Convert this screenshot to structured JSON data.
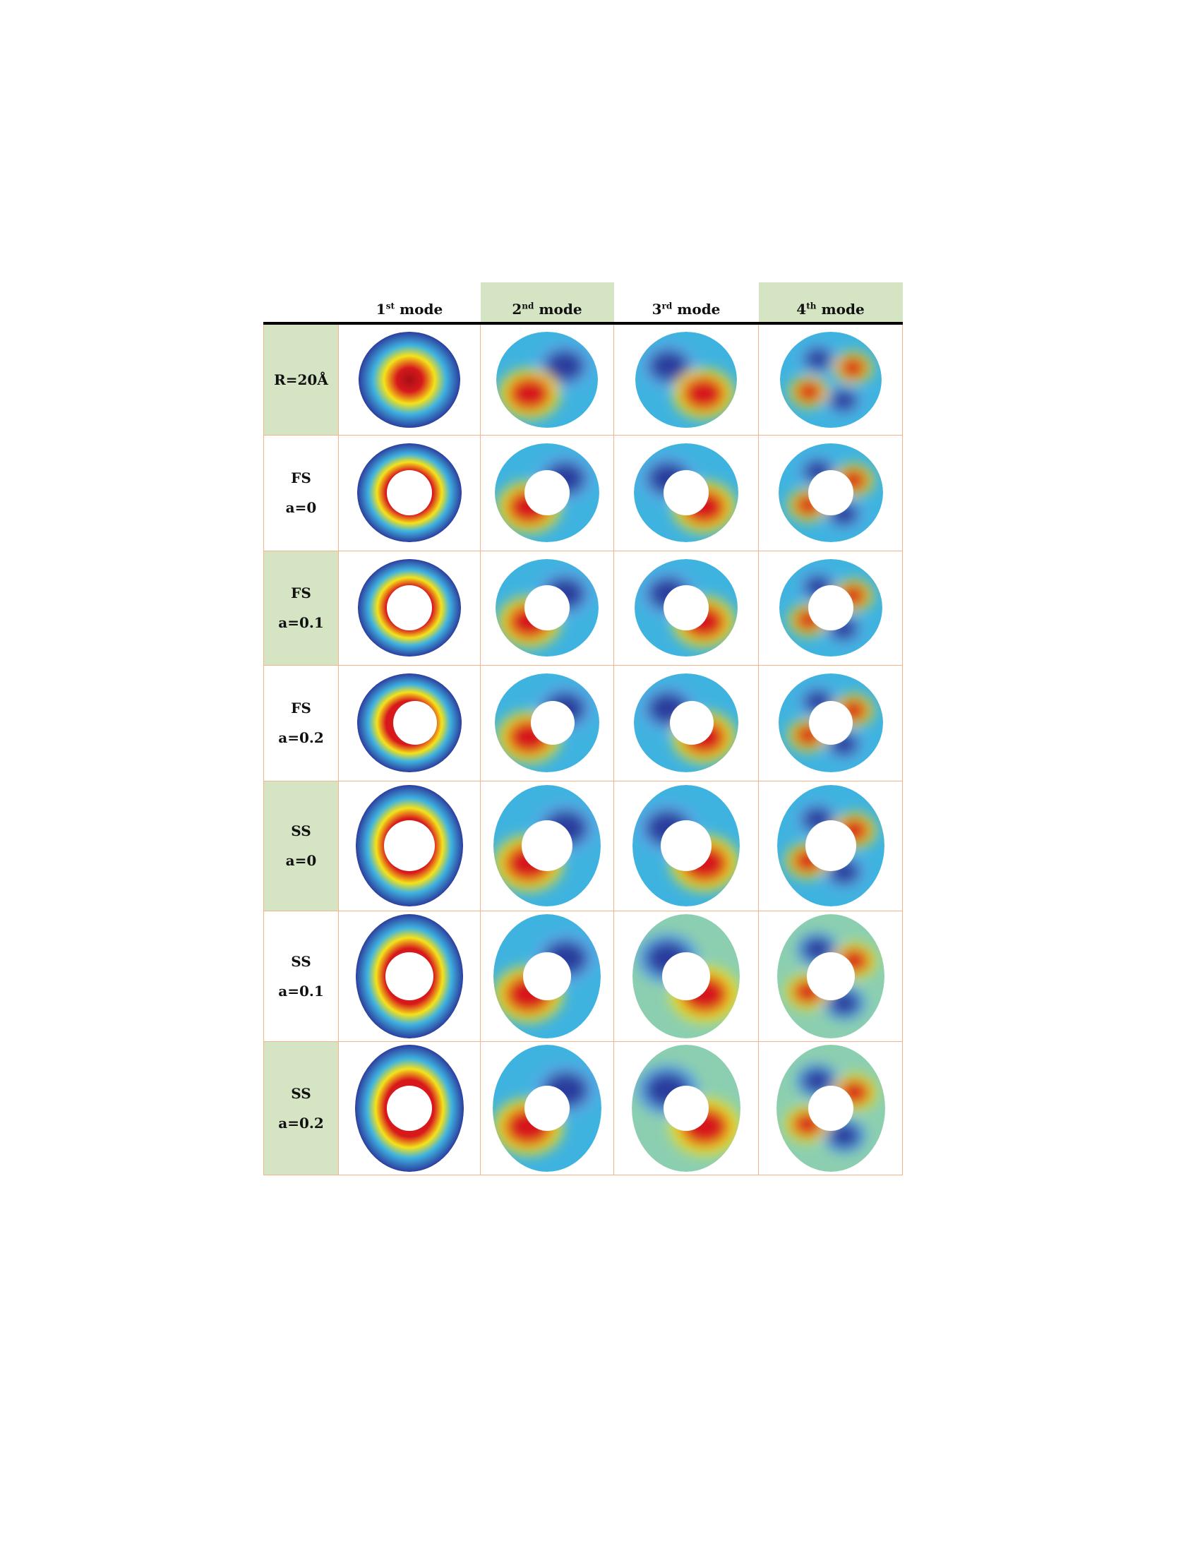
{
  "header": {
    "modes": [
      {
        "num": "1",
        "sup": "st",
        "word": "mode"
      },
      {
        "num": "2",
        "sup": "nd",
        "word": "mode"
      },
      {
        "num": "3",
        "sup": "rd",
        "word": "mode"
      },
      {
        "num": "4",
        "sup": "th",
        "word": "mode"
      }
    ]
  },
  "rows": [
    {
      "line1": "R=20Å",
      "line2": ""
    },
    {
      "line1": "FS",
      "line2": "a=0"
    },
    {
      "line1": "FS",
      "line2": "a=0.1"
    },
    {
      "line1": "FS",
      "line2": "a=0.2"
    },
    {
      "line1": "SS",
      "line2": "a=0"
    },
    {
      "line1": "SS",
      "line2": "a=0.1"
    },
    {
      "line1": "SS",
      "line2": "a=0.2"
    }
  ],
  "colors": {
    "header_green": "#d5e4c3",
    "grid_border": "#f3b48a",
    "red": "#d7191c",
    "yellow": "#f5e21a",
    "cyan": "#3fb3e0",
    "blue": "#2c3e9e",
    "teal_bg": "#8ccfb0"
  }
}
